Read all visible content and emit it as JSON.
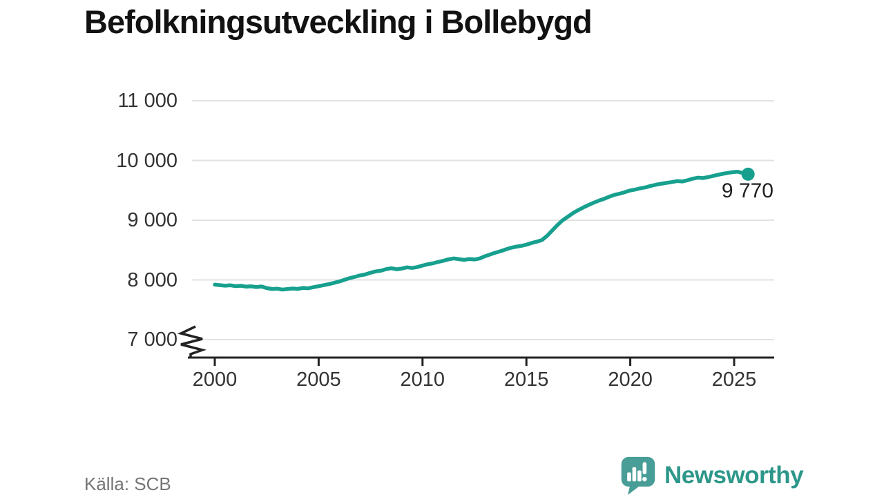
{
  "header": {
    "title": "Befolkningsutveckling i Bollebygd"
  },
  "footer": {
    "source": "Källa: SCB",
    "brand": "Newsworthy"
  },
  "colors": {
    "line": "#17a08e",
    "grid": "#e2e2e2",
    "axis": "#222222",
    "logo_icon": "#489d96",
    "brand_text": "#2d978a"
  },
  "chart_data": {
    "type": "line",
    "title": "Befolkningsutveckling i Bollebygd",
    "xlabel": "",
    "ylabel": "",
    "grid": "horizontal",
    "y_axis_break": true,
    "xlim": [
      1998.9,
      2026.9
    ],
    "ylim": [
      6700,
      11300
    ],
    "end_label": "9 770",
    "end_value": 9770,
    "yticks": [
      {
        "value": 11000,
        "label": "11 000"
      },
      {
        "value": 10000,
        "label": "10 000"
      },
      {
        "value": 9000,
        "label": "9 000"
      },
      {
        "value": 8000,
        "label": "8 000"
      },
      {
        "value": 7000,
        "label": "7 000"
      }
    ],
    "xticks": [
      {
        "value": 2000,
        "label": "2000"
      },
      {
        "value": 2005,
        "label": "2005"
      },
      {
        "value": 2010,
        "label": "2010"
      },
      {
        "value": 2015,
        "label": "2015"
      },
      {
        "value": 2020,
        "label": "2020"
      },
      {
        "value": 2025,
        "label": "2025"
      }
    ],
    "points": [
      [
        2000.0,
        7920
      ],
      [
        2000.25,
        7912
      ],
      [
        2000.5,
        7903
      ],
      [
        2000.75,
        7910
      ],
      [
        2001.0,
        7896
      ],
      [
        2001.25,
        7902
      ],
      [
        2001.5,
        7888
      ],
      [
        2001.75,
        7893
      ],
      [
        2002.0,
        7880
      ],
      [
        2002.25,
        7890
      ],
      [
        2002.5,
        7862
      ],
      [
        2002.75,
        7848
      ],
      [
        2003.0,
        7853
      ],
      [
        2003.25,
        7838
      ],
      [
        2003.5,
        7846
      ],
      [
        2003.75,
        7856
      ],
      [
        2004.0,
        7850
      ],
      [
        2004.25,
        7866
      ],
      [
        2004.5,
        7860
      ],
      [
        2004.75,
        7878
      ],
      [
        2005.0,
        7895
      ],
      [
        2005.25,
        7912
      ],
      [
        2005.5,
        7930
      ],
      [
        2005.75,
        7952
      ],
      [
        2006.0,
        7975
      ],
      [
        2006.25,
        8002
      ],
      [
        2006.5,
        8030
      ],
      [
        2006.75,
        8052
      ],
      [
        2007.0,
        8076
      ],
      [
        2007.25,
        8092
      ],
      [
        2007.5,
        8120
      ],
      [
        2007.75,
        8142
      ],
      [
        2008.0,
        8155
      ],
      [
        2008.25,
        8180
      ],
      [
        2008.5,
        8195
      ],
      [
        2008.75,
        8178
      ],
      [
        2009.0,
        8190
      ],
      [
        2009.25,
        8210
      ],
      [
        2009.5,
        8200
      ],
      [
        2009.75,
        8215
      ],
      [
        2010.0,
        8240
      ],
      [
        2010.25,
        8262
      ],
      [
        2010.5,
        8278
      ],
      [
        2010.75,
        8300
      ],
      [
        2011.0,
        8320
      ],
      [
        2011.25,
        8345
      ],
      [
        2011.5,
        8360
      ],
      [
        2011.75,
        8348
      ],
      [
        2012.0,
        8335
      ],
      [
        2012.25,
        8350
      ],
      [
        2012.5,
        8342
      ],
      [
        2012.75,
        8360
      ],
      [
        2013.0,
        8395
      ],
      [
        2013.25,
        8425
      ],
      [
        2013.5,
        8455
      ],
      [
        2013.75,
        8480
      ],
      [
        2014.0,
        8510
      ],
      [
        2014.25,
        8538
      ],
      [
        2014.5,
        8556
      ],
      [
        2014.75,
        8570
      ],
      [
        2015.0,
        8590
      ],
      [
        2015.25,
        8618
      ],
      [
        2015.5,
        8640
      ],
      [
        2015.75,
        8668
      ],
      [
        2016.0,
        8740
      ],
      [
        2016.25,
        8830
      ],
      [
        2016.5,
        8920
      ],
      [
        2016.75,
        9000
      ],
      [
        2017.0,
        9060
      ],
      [
        2017.25,
        9120
      ],
      [
        2017.5,
        9170
      ],
      [
        2017.75,
        9215
      ],
      [
        2018.0,
        9255
      ],
      [
        2018.25,
        9295
      ],
      [
        2018.5,
        9330
      ],
      [
        2018.75,
        9360
      ],
      [
        2019.0,
        9395
      ],
      [
        2019.25,
        9425
      ],
      [
        2019.5,
        9445
      ],
      [
        2019.75,
        9470
      ],
      [
        2020.0,
        9498
      ],
      [
        2020.25,
        9515
      ],
      [
        2020.5,
        9535
      ],
      [
        2020.75,
        9552
      ],
      [
        2021.0,
        9576
      ],
      [
        2021.25,
        9595
      ],
      [
        2021.5,
        9612
      ],
      [
        2021.75,
        9625
      ],
      [
        2022.0,
        9638
      ],
      [
        2022.25,
        9655
      ],
      [
        2022.5,
        9648
      ],
      [
        2022.75,
        9668
      ],
      [
        2023.0,
        9695
      ],
      [
        2023.25,
        9712
      ],
      [
        2023.5,
        9705
      ],
      [
        2023.75,
        9722
      ],
      [
        2024.0,
        9742
      ],
      [
        2024.25,
        9762
      ],
      [
        2024.5,
        9780
      ],
      [
        2024.75,
        9795
      ],
      [
        2025.0,
        9808
      ],
      [
        2025.17,
        9812
      ],
      [
        2025.33,
        9798
      ],
      [
        2025.5,
        9782
      ],
      [
        2025.67,
        9770
      ]
    ]
  }
}
